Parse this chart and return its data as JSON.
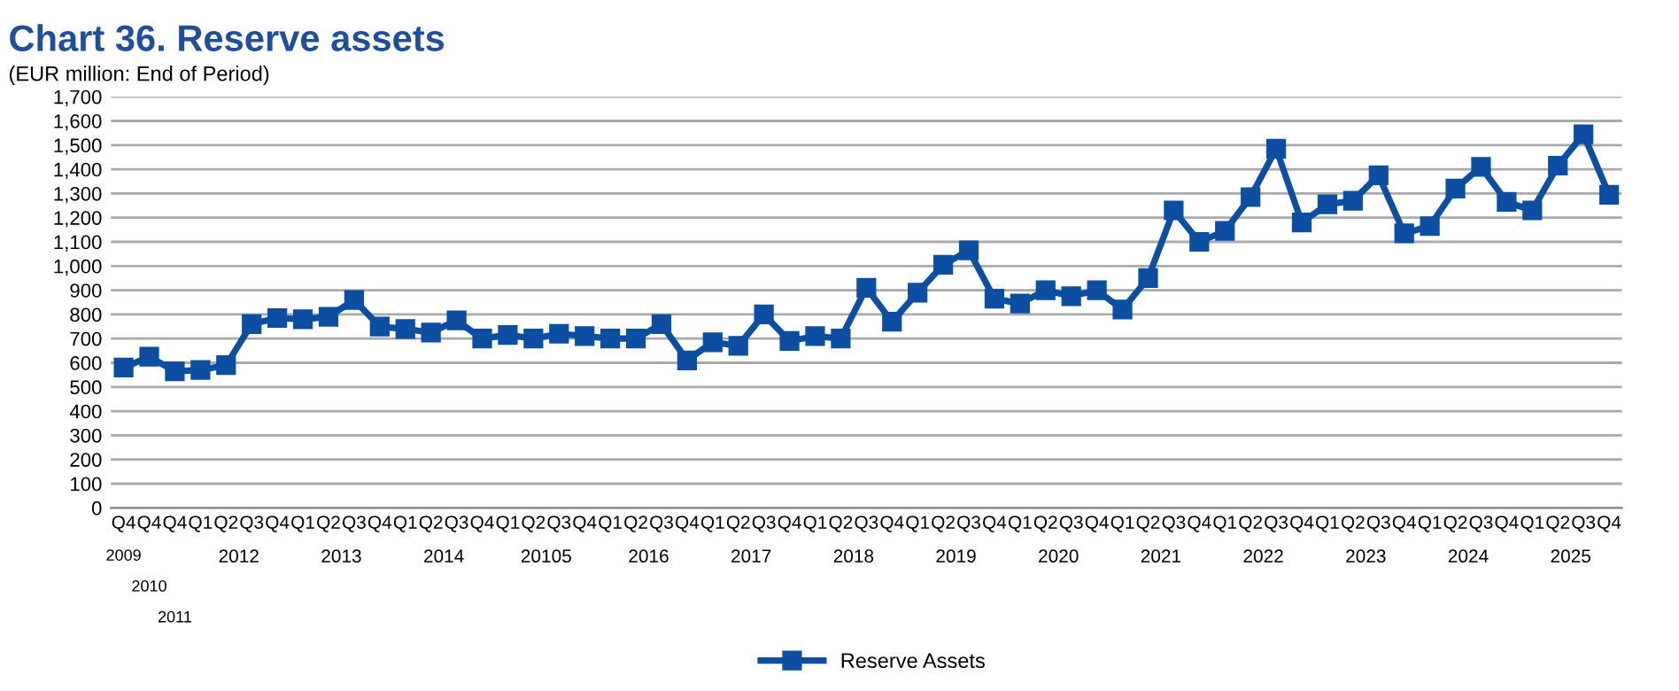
{
  "chart_data": {
    "type": "line",
    "title": "Chart 36. Reserve assets",
    "subtitle": "(EUR million: End of Period)",
    "categories": [
      "Q4",
      "Q4",
      "Q4",
      "Q1",
      "Q2",
      "Q3",
      "Q4",
      "Q1",
      "Q2",
      "Q3",
      "Q4",
      "Q1",
      "Q2",
      "Q3",
      "Q4",
      "Q1",
      "Q2",
      "Q3",
      "Q4",
      "Q1",
      "Q2",
      "Q3",
      "Q4",
      "Q1",
      "Q2",
      "Q3",
      "Q4",
      "Q1",
      "Q2",
      "Q3",
      "Q4",
      "Q1",
      "Q2",
      "Q3",
      "Q4",
      "Q1",
      "Q2",
      "Q3",
      "Q4",
      "Q1",
      "Q2",
      "Q3",
      "Q4",
      "Q1",
      "Q2",
      "Q3",
      "Q4",
      "Q1",
      "Q2",
      "Q3",
      "Q4",
      "Q1",
      "Q2",
      "Q3",
      "Q4",
      "Q1",
      "Q2",
      "Q3",
      "Q4"
    ],
    "annotations": [
      "2009",
      "2010",
      "2011",
      "2012",
      "2013",
      "2014",
      "20105",
      "2016",
      "2017",
      "2018",
      "2019",
      "2020",
      "2021",
      "2022",
      "2023",
      "2024",
      "2025"
    ],
    "series": [
      {
        "name": "Reserve Assets",
        "color": "#0b4ea2",
        "values": [
          580,
          625,
          565,
          570,
          590,
          760,
          785,
          780,
          790,
          860,
          750,
          740,
          725,
          775,
          700,
          715,
          700,
          720,
          710,
          700,
          700,
          760,
          610,
          685,
          670,
          800,
          690,
          710,
          700,
          910,
          770,
          890,
          1005,
          1065,
          865,
          845,
          900,
          875,
          900,
          820,
          950,
          1230,
          1100,
          1145,
          1285,
          1485,
          1180,
          1255,
          1270,
          1375,
          1135,
          1165,
          1320,
          1410,
          1265,
          1230,
          1415,
          1545,
          1295
        ]
      }
    ],
    "ylim": [
      0,
      1700
    ],
    "yticks": [
      0,
      100,
      200,
      300,
      400,
      500,
      600,
      700,
      800,
      900,
      {
        "value": 1000,
        "label": "1,000"
      },
      {
        "value": 1100,
        "label": "1,100"
      },
      {
        "value": 1200,
        "label": "1,200"
      },
      {
        "value": 1300,
        "label": "1,300"
      },
      {
        "value": 1400,
        "label": "1,400"
      },
      {
        "value": 1500,
        "label": "1,500"
      },
      {
        "value": 1600,
        "label": "1,600"
      },
      {
        "value": 1700,
        "label": "1,700"
      }
    ],
    "grid": "y",
    "legend": "bottom",
    "marker": "square",
    "line_style": "solid"
  }
}
